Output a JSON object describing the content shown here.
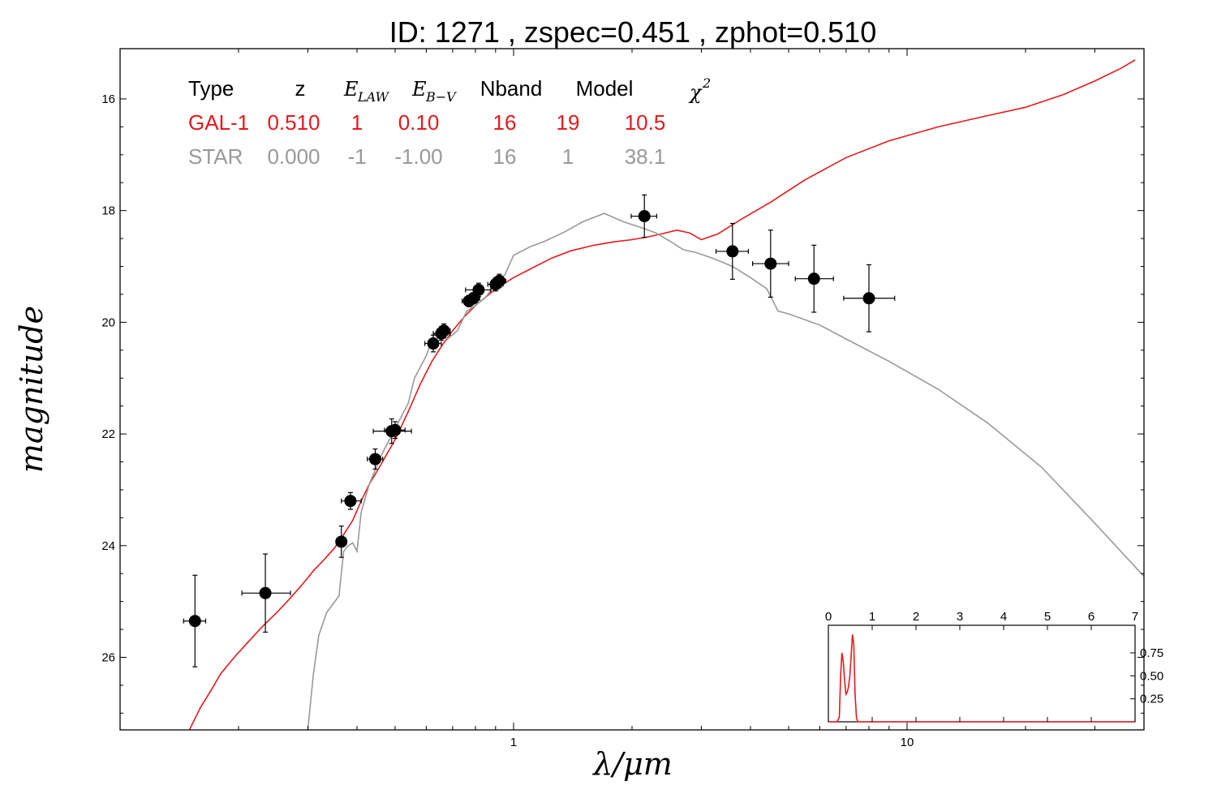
{
  "chart_data": [
    {
      "type": "scatter",
      "title": "ID:  1271  , zspec=0.451 , zphot=0.510",
      "xlabel": "λ/μm",
      "ylabel": "magnitude",
      "x_scale": "log",
      "xlim": [
        0.1,
        40
      ],
      "ylim": [
        27.3,
        15.1
      ],
      "y_inverted": true,
      "x_ticks": [
        1,
        10
      ],
      "x_tick_labels": [
        "1",
        "10"
      ],
      "y_ticks": [
        16,
        18,
        20,
        22,
        24,
        26
      ],
      "y_tick_labels": [
        "16",
        "18",
        "20",
        "22",
        "24",
        "26"
      ],
      "grid": false,
      "legend_table": {
        "headers": [
          "Type",
          "z",
          "E_LAW",
          "E_B−V",
          "Nband",
          "Model",
          "χ²"
        ],
        "header_math": {
          "elaw_main": "E",
          "elaw_sub": "LAW",
          "ebv_main": "E",
          "ebv_sub": "B−V",
          "chi_main": "χ",
          "chi_sup": "2"
        },
        "rows": [
          {
            "cells": [
              "GAL-1",
              "0.510",
              "1",
              "0.10",
              "16",
              "19",
              "10.5"
            ],
            "color": "#e41a1c"
          },
          {
            "cells": [
              "STAR",
              "0.000",
              "-1",
              "-1.00",
              "16",
              "1",
              "38.1"
            ],
            "color": "#999999"
          }
        ]
      },
      "series": [
        {
          "kind": "points",
          "color": "#000000",
          "points": [
            {
              "x": 0.155,
              "y": 25.35,
              "xerr": [
                0.01,
                0.01
              ],
              "yerr": 0.82
            },
            {
              "x": 0.234,
              "y": 24.85,
              "xerr": [
                0.03,
                0.037
              ],
              "yerr": 0.7
            },
            {
              "x": 0.365,
              "y": 23.93,
              "xerr": [
                0.01,
                0.01
              ],
              "yerr": 0.28
            },
            {
              "x": 0.385,
              "y": 23.2,
              "xerr": [
                0.02,
                0.025
              ],
              "yerr": 0.15
            },
            {
              "x": 0.445,
              "y": 22.45,
              "xerr": [
                0.02,
                0.02
              ],
              "yerr": 0.18
            },
            {
              "x": 0.49,
              "y": 21.95,
              "xerr": [
                0.05,
                0.06
              ],
              "yerr": 0.22
            },
            {
              "x": 0.5,
              "y": 21.93,
              "xerr": [
                0.03,
                0.03
              ],
              "yerr": 0.15
            },
            {
              "x": 0.625,
              "y": 20.38,
              "xerr": [
                0.03,
                0.03
              ],
              "yerr": 0.15
            },
            {
              "x": 0.655,
              "y": 20.2,
              "xerr": [
                0.03,
                0.035
              ],
              "yerr": 0.12
            },
            {
              "x": 0.665,
              "y": 20.15,
              "xerr": [
                0.025,
                0.025
              ],
              "yerr": 0.12
            },
            {
              "x": 0.77,
              "y": 19.62,
              "xerr": [
                0.03,
                0.03
              ],
              "yerr": 0.1
            },
            {
              "x": 0.79,
              "y": 19.57,
              "xerr": [
                0.03,
                0.03
              ],
              "yerr": 0.1
            },
            {
              "x": 0.815,
              "y": 19.42,
              "xerr": [
                0.06,
                0.06
              ],
              "yerr": 0.12
            },
            {
              "x": 0.9,
              "y": 19.32,
              "xerr": [
                0.04,
                0.04
              ],
              "yerr": 0.12
            },
            {
              "x": 0.92,
              "y": 19.26,
              "xerr": [
                0.035,
                0.035
              ],
              "yerr": 0.12
            },
            {
              "x": 2.15,
              "y": 18.1,
              "xerr": [
                0.16,
                0.16
              ],
              "yerr": 0.38
            },
            {
              "x": 3.6,
              "y": 18.73,
              "xerr": [
                0.33,
                0.35
              ],
              "yerr": 0.5
            },
            {
              "x": 4.5,
              "y": 18.95,
              "xerr": [
                0.45,
                0.5
              ],
              "yerr": 0.6
            },
            {
              "x": 5.8,
              "y": 19.22,
              "xerr": [
                0.6,
                0.7
              ],
              "yerr": 0.6
            },
            {
              "x": 8.0,
              "y": 19.57,
              "xerr": [
                1.1,
                1.3
              ],
              "yerr": 0.6
            }
          ]
        },
        {
          "kind": "line",
          "color": "#e41a1c",
          "points": [
            [
              0.15,
              27.3
            ],
            [
              0.16,
              26.9
            ],
            [
              0.17,
              26.6
            ],
            [
              0.18,
              26.3
            ],
            [
              0.195,
              26.0
            ],
            [
              0.21,
              25.75
            ],
            [
              0.23,
              25.45
            ],
            [
              0.25,
              25.2
            ],
            [
              0.27,
              24.95
            ],
            [
              0.29,
              24.7
            ],
            [
              0.31,
              24.45
            ],
            [
              0.33,
              24.25
            ],
            [
              0.35,
              24.05
            ],
            [
              0.37,
              23.8
            ],
            [
              0.39,
              23.55
            ],
            [
              0.41,
              23.2
            ],
            [
              0.43,
              22.9
            ],
            [
              0.46,
              22.55
            ],
            [
              0.5,
              22.1
            ],
            [
              0.54,
              21.6
            ],
            [
              0.58,
              21.1
            ],
            [
              0.62,
              20.7
            ],
            [
              0.66,
              20.4
            ],
            [
              0.7,
              20.15
            ],
            [
              0.75,
              19.9
            ],
            [
              0.8,
              19.7
            ],
            [
              0.85,
              19.55
            ],
            [
              0.9,
              19.4
            ],
            [
              1.0,
              19.2
            ],
            [
              1.1,
              19.05
            ],
            [
              1.25,
              18.85
            ],
            [
              1.4,
              18.72
            ],
            [
              1.6,
              18.62
            ],
            [
              1.8,
              18.56
            ],
            [
              2.0,
              18.52
            ],
            [
              2.2,
              18.47
            ],
            [
              2.4,
              18.41
            ],
            [
              2.6,
              18.35
            ],
            [
              2.8,
              18.4
            ],
            [
              3.0,
              18.52
            ],
            [
              3.3,
              18.42
            ],
            [
              3.8,
              18.15
            ],
            [
              4.5,
              17.85
            ],
            [
              5.5,
              17.45
            ],
            [
              7.0,
              17.05
            ],
            [
              9.0,
              16.75
            ],
            [
              12.0,
              16.5
            ],
            [
              16.0,
              16.3
            ],
            [
              20.0,
              16.15
            ],
            [
              25.0,
              15.92
            ],
            [
              30.0,
              15.68
            ],
            [
              35.0,
              15.45
            ],
            [
              38.0,
              15.3
            ]
          ]
        },
        {
          "kind": "line",
          "color": "#999999",
          "points": [
            [
              0.3,
              27.3
            ],
            [
              0.31,
              26.3
            ],
            [
              0.32,
              25.6
            ],
            [
              0.335,
              25.2
            ],
            [
              0.36,
              24.9
            ],
            [
              0.37,
              24.1
            ],
            [
              0.38,
              24.0
            ],
            [
              0.39,
              23.95
            ],
            [
              0.4,
              24.1
            ],
            [
              0.41,
              23.4
            ],
            [
              0.43,
              22.9
            ],
            [
              0.46,
              22.4
            ],
            [
              0.5,
              21.9
            ],
            [
              0.54,
              21.45
            ],
            [
              0.56,
              21.0
            ],
            [
              0.6,
              20.6
            ],
            [
              0.63,
              20.2
            ],
            [
              0.68,
              20.3
            ],
            [
              0.72,
              20.15
            ],
            [
              0.76,
              19.8
            ],
            [
              0.8,
              19.7
            ],
            [
              0.85,
              19.55
            ],
            [
              0.9,
              19.3
            ],
            [
              0.95,
              19.15
            ],
            [
              1.0,
              18.8
            ],
            [
              1.1,
              18.65
            ],
            [
              1.2,
              18.55
            ],
            [
              1.35,
              18.38
            ],
            [
              1.5,
              18.2
            ],
            [
              1.7,
              18.05
            ],
            [
              1.9,
              18.2
            ],
            [
              2.1,
              18.3
            ],
            [
              2.3,
              18.4
            ],
            [
              2.5,
              18.55
            ],
            [
              2.7,
              18.7
            ],
            [
              2.9,
              18.75
            ],
            [
              3.2,
              18.85
            ],
            [
              3.6,
              19.0
            ],
            [
              4.0,
              19.2
            ],
            [
              4.4,
              19.4
            ],
            [
              4.7,
              19.8
            ],
            [
              5.0,
              19.85
            ],
            [
              6.0,
              20.05
            ],
            [
              7.0,
              20.3
            ],
            [
              9.0,
              20.7
            ],
            [
              12.0,
              21.2
            ],
            [
              16.0,
              21.8
            ],
            [
              22.0,
              22.6
            ],
            [
              30.0,
              23.6
            ],
            [
              40.0,
              24.55
            ]
          ]
        }
      ]
    },
    {
      "type": "line",
      "title": "",
      "xlim": [
        0,
        7
      ],
      "ylim": [
        0,
        1.05
      ],
      "x_ticks": [
        0,
        1,
        2,
        3,
        4,
        5,
        6,
        7
      ],
      "x_tick_labels": [
        "0",
        "1",
        "2",
        "3",
        "4",
        "5",
        "6",
        "7"
      ],
      "y_ticks": [
        0.25,
        0.5,
        0.75
      ],
      "y_tick_labels": [
        "0.25",
        "0.50",
        "0.75"
      ],
      "series": [
        {
          "color": "#e41a1c",
          "x": [
            0.0,
            0.2,
            0.25,
            0.28,
            0.31,
            0.34,
            0.37,
            0.4,
            0.43,
            0.46,
            0.49,
            0.52,
            0.55,
            0.58,
            0.61,
            0.64,
            0.67,
            0.7,
            7.0
          ],
          "y": [
            0.0,
            0.0,
            0.05,
            0.5,
            0.75,
            0.65,
            0.45,
            0.3,
            0.32,
            0.38,
            0.5,
            0.72,
            0.95,
            0.85,
            0.3,
            0.05,
            0.0,
            0.0,
            0.0
          ]
        }
      ]
    }
  ]
}
